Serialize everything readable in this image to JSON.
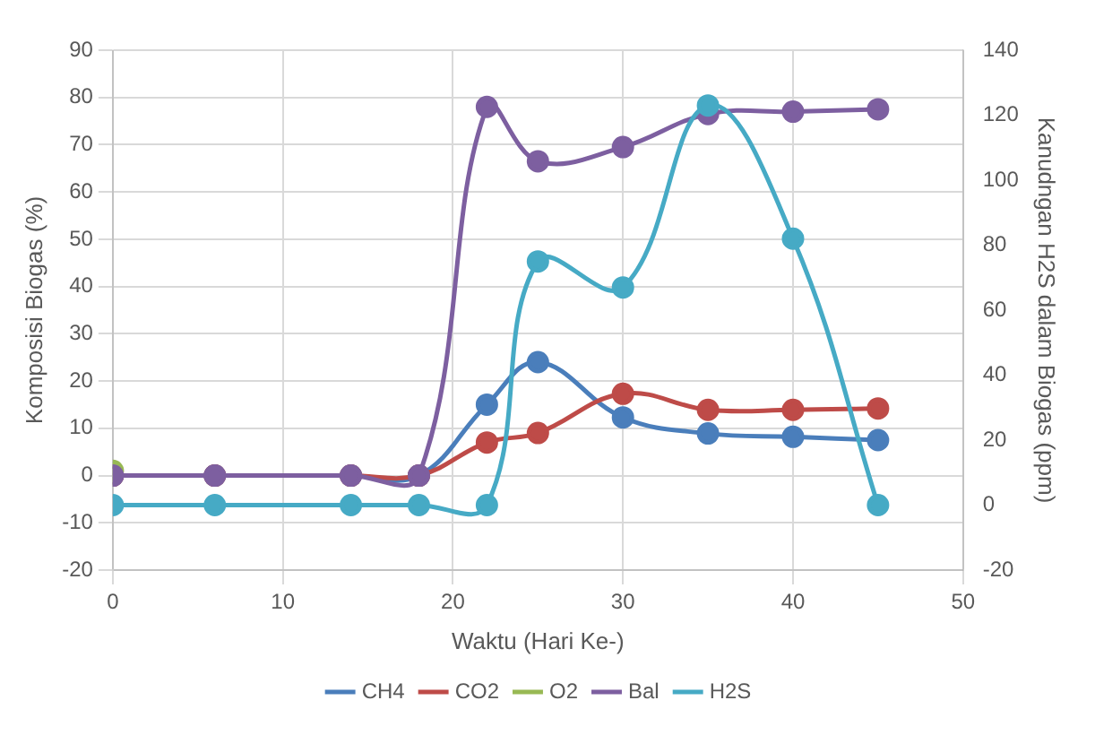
{
  "chart_data": {
    "type": "line",
    "xlabel": "Waktu (Hari Ke-)",
    "ylabel": "Komposisi Biogas (%)",
    "y2label": "Kanudngan H2S dalam Biogas (ppm)",
    "x": [
      0,
      6,
      14,
      18,
      22,
      25,
      30,
      35,
      40,
      45
    ],
    "series": [
      {
        "name": "CH4",
        "color": "#4a7ebb",
        "values": [
          0,
          0,
          0,
          0,
          15,
          24,
          12.3,
          8.9,
          8.2,
          7.5
        ]
      },
      {
        "name": "CO2",
        "color": "#be4b48",
        "values": [
          0,
          0,
          0,
          0,
          7,
          9,
          17.3,
          13.9,
          13.9,
          14.2
        ]
      },
      {
        "name": "O2",
        "color": "#98b954",
        "values": [
          1,
          null,
          null,
          null,
          null,
          null,
          null,
          null,
          null,
          null
        ]
      },
      {
        "name": "Bal",
        "color": "#7d5fa0",
        "values": [
          0,
          0,
          0,
          0,
          78,
          66.5,
          69.5,
          76.5,
          77,
          77.5
        ]
      },
      {
        "name": "H2S",
        "color": "#46aac5",
        "axis": "y2",
        "values": [
          0,
          0,
          0,
          0,
          0,
          75,
          67,
          123,
          82,
          0
        ]
      }
    ],
    "xlim": [
      0,
      50
    ],
    "xticks": [
      0,
      10,
      20,
      30,
      40,
      50
    ],
    "ylim": [
      -20,
      90
    ],
    "yticks": [
      -20,
      -10,
      0,
      10,
      20,
      30,
      40,
      50,
      60,
      70,
      80,
      90
    ],
    "y2lim": [
      -20,
      140
    ],
    "y2ticks": [
      -20,
      0,
      20,
      40,
      60,
      80,
      100,
      120,
      140
    ],
    "grid": true,
    "legend": "bottom",
    "marker": "circle",
    "line_style": "solid"
  }
}
